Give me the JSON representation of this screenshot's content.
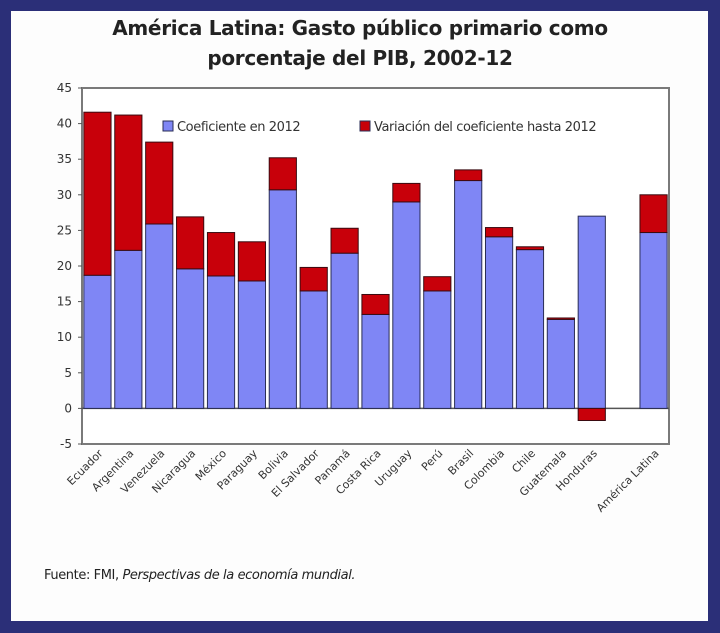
{
  "chart_data": {
    "type": "bar",
    "stacked": true,
    "title": "América Latina: Gasto público primario como porcentaje del PIB, 2002-12",
    "title_lines": [
      "América Latina: Gasto público primario como",
      "porcentaje del PIB, 2002-12"
    ],
    "xlabel": "",
    "ylabel": "",
    "ylim": [
      -5,
      45
    ],
    "yticks": [
      -5,
      0,
      5,
      10,
      15,
      20,
      25,
      30,
      35,
      40,
      45
    ],
    "grid": false,
    "legend_position": "top",
    "categories": [
      "Ecuador",
      "Argentina",
      "Venezuela",
      "Nicaragua",
      "México",
      "Paraguay",
      "Bolivia",
      "El Salvador",
      "Panamá",
      "Costa Rica",
      "Uruguay",
      "Perú",
      "Brasil",
      "Colombia",
      "Chile",
      "Guatemala",
      "Honduras",
      "",
      "América Latina"
    ],
    "series": [
      {
        "name": "Coeficiente en 2012",
        "color": "#7f86f5",
        "values": [
          18.7,
          22.2,
          25.9,
          19.6,
          18.6,
          17.9,
          30.7,
          16.5,
          21.8,
          13.2,
          29.0,
          16.5,
          32.0,
          24.1,
          22.3,
          12.5,
          27.0,
          null,
          24.7
        ]
      },
      {
        "name": "Variación del coeficiente hasta 2012",
        "color": "#c8000a",
        "values": [
          22.9,
          19.0,
          11.5,
          7.3,
          6.1,
          5.5,
          4.5,
          3.3,
          3.5,
          2.8,
          2.6,
          2.0,
          1.5,
          1.3,
          0.4,
          0.2,
          -1.7,
          null,
          5.3
        ]
      }
    ],
    "source_label": "Fuente: FMI,",
    "source_title": "Perspectivas de la economía mundial."
  }
}
